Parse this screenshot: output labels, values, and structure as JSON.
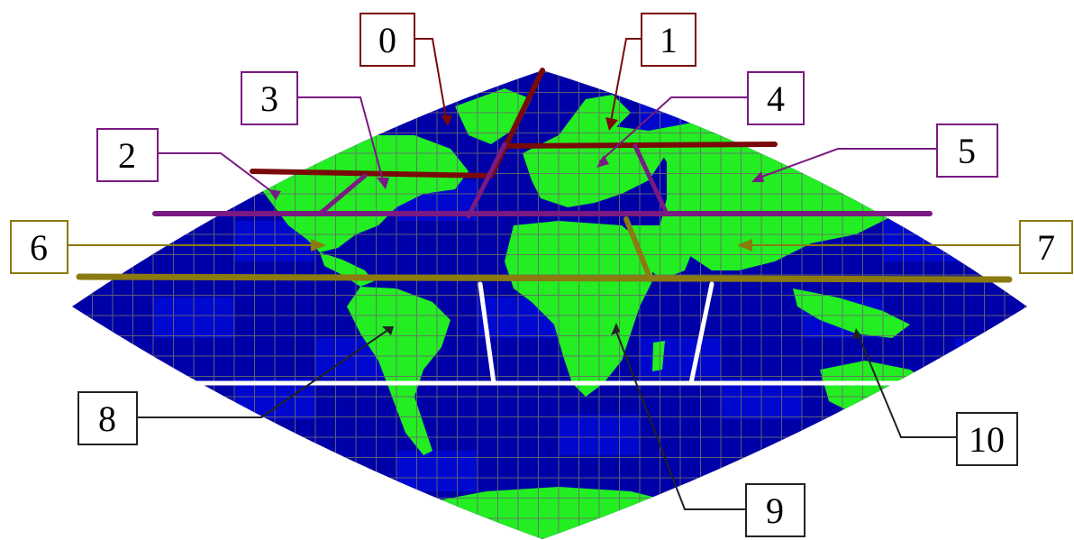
{
  "map": {
    "projection": "sinusoidal-like lens",
    "colors": {
      "ocean": "#0000a8",
      "ocean_light": "#0010ee",
      "land": "#22ee22",
      "grid": "#6b6b6b",
      "group_a": "#7a0a0a",
      "group_b": "#7a1a82",
      "group_c": "#8a7a10",
      "group_d": "#222222",
      "boundary_white": "#ffffff"
    }
  },
  "labels": [
    {
      "id": "0",
      "text": "0",
      "group": "group_a"
    },
    {
      "id": "1",
      "text": "1",
      "group": "group_a"
    },
    {
      "id": "2",
      "text": "2",
      "group": "group_b"
    },
    {
      "id": "3",
      "text": "3",
      "group": "group_b"
    },
    {
      "id": "4",
      "text": "4",
      "group": "group_b"
    },
    {
      "id": "5",
      "text": "5",
      "group": "group_b"
    },
    {
      "id": "6",
      "text": "6",
      "group": "group_c"
    },
    {
      "id": "7",
      "text": "7",
      "group": "group_c"
    },
    {
      "id": "8",
      "text": "8",
      "group": "group_d"
    },
    {
      "id": "9",
      "text": "9",
      "group": "group_d"
    },
    {
      "id": "10",
      "text": "10",
      "group": "group_d"
    }
  ]
}
